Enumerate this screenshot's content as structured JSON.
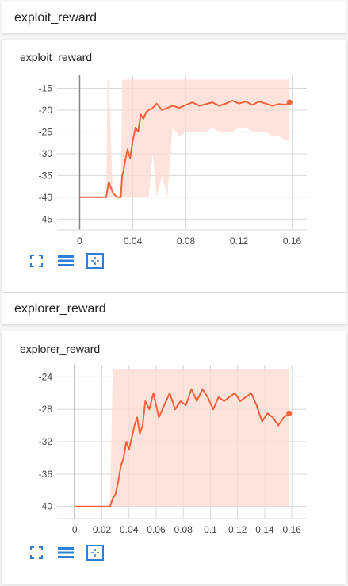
{
  "sections": [
    {
      "header": "exploit_reward",
      "card_title": "exploit_reward"
    },
    {
      "header": "explorer_reward",
      "card_title": "explorer_reward"
    }
  ],
  "colors": {
    "line": "#f4623a",
    "band": "#fcd9cf",
    "grid": "#d9d9d9",
    "axis": "#888888",
    "accent": "#2f7fd9"
  },
  "toolbar_icons": [
    "fit-domain-icon",
    "toggle-log-scale-icon",
    "toggle-selection-icon"
  ],
  "chart_data": [
    {
      "type": "line",
      "title": "exploit_reward",
      "xlabel": "",
      "ylabel": "",
      "xlim": [
        -0.017,
        0.171
      ],
      "ylim": [
        -47.5,
        -12
      ],
      "xticks": [
        0,
        0.04,
        0.08,
        0.12,
        0.16
      ],
      "xtick_labels": [
        "0",
        "0.04",
        "0.08",
        "0.12",
        "0.16"
      ],
      "yticks": [
        -15,
        -20,
        -25,
        -30,
        -35,
        -40,
        -45
      ],
      "ytick_labels": [
        "-15",
        "-20",
        "-25",
        "-30",
        "-35",
        "-40",
        "-45"
      ],
      "grid": true,
      "series": [
        {
          "x": [
            0,
            0.02,
            0.021,
            0.022,
            0.025,
            0.028,
            0.031,
            0.032,
            0.033,
            0.034,
            0.036,
            0.038,
            0.04,
            0.042,
            0.044,
            0.046,
            0.048,
            0.05,
            0.052,
            0.055,
            0.058,
            0.062,
            0.066,
            0.07,
            0.075,
            0.08,
            0.085,
            0.09,
            0.095,
            0.1,
            0.105,
            0.11,
            0.115,
            0.12,
            0.125,
            0.13,
            0.135,
            0.14,
            0.145,
            0.15,
            0.155,
            0.158
          ],
          "y": [
            -40,
            -40,
            -38,
            -36.5,
            -39,
            -40,
            -40,
            -35,
            -34,
            -32,
            -29,
            -31,
            -27,
            -24,
            -25,
            -21,
            -22,
            -20.5,
            -20,
            -19.5,
            -18.5,
            -20,
            -19.5,
            -19,
            -19.5,
            -18.8,
            -18.2,
            -19,
            -18.6,
            -18.2,
            -19,
            -18.5,
            -17.8,
            -18.5,
            -18,
            -18.8,
            -18,
            -18.5,
            -19,
            -18.6,
            -18.8,
            -18.2
          ],
          "band_low": [
            -40,
            -40,
            -40,
            -40,
            -40,
            -40,
            -40,
            -40,
            -40,
            -40,
            -40,
            -40,
            -40,
            -40,
            -40,
            -40,
            -40,
            -40,
            -40,
            -30,
            -40,
            -35,
            -40,
            -24,
            -26,
            -25,
            -25,
            -25,
            -25,
            -24,
            -25,
            -25,
            -25,
            -24,
            -24,
            -25,
            -25,
            -25,
            -26,
            -26,
            -27,
            -27
          ],
          "band_high": [
            -40,
            -40,
            -13,
            -13,
            -40,
            -40,
            -40,
            -13,
            -13,
            -13,
            -13,
            -13,
            -13,
            -13,
            -13,
            -13,
            -13,
            -13,
            -13,
            -13,
            -13,
            -13,
            -13,
            -13,
            -13,
            -13,
            -13,
            -13,
            -13,
            -13,
            -13,
            -13,
            -13,
            -13,
            -13,
            -13,
            -13,
            -13,
            -13,
            -13,
            -13,
            -13
          ]
        }
      ]
    },
    {
      "type": "line",
      "title": "explorer_reward",
      "xlabel": "",
      "ylabel": "",
      "xlim": [
        -0.013,
        0.171
      ],
      "ylim": [
        -41.5,
        -22.5
      ],
      "xticks": [
        0,
        0.02,
        0.04,
        0.06,
        0.08,
        0.1,
        0.12,
        0.14,
        0.16
      ],
      "xtick_labels": [
        "0",
        "0.02",
        "0.04",
        "0.06",
        "0.08",
        "0.1",
        "0.12",
        "0.14",
        "0.16"
      ],
      "yticks": [
        -24,
        -28,
        -32,
        -36,
        -40
      ],
      "ytick_labels": [
        "-24",
        "-28",
        "-32",
        "-36",
        "-40"
      ],
      "grid": true,
      "series": [
        {
          "x": [
            0,
            0.026,
            0.028,
            0.03,
            0.032,
            0.034,
            0.036,
            0.038,
            0.04,
            0.042,
            0.044,
            0.046,
            0.048,
            0.05,
            0.052,
            0.055,
            0.058,
            0.062,
            0.066,
            0.07,
            0.074,
            0.078,
            0.082,
            0.086,
            0.09,
            0.094,
            0.098,
            0.102,
            0.106,
            0.11,
            0.114,
            0.118,
            0.122,
            0.126,
            0.13,
            0.134,
            0.138,
            0.142,
            0.146,
            0.15,
            0.154,
            0.158
          ],
          "y": [
            -40,
            -40,
            -39,
            -38.5,
            -37,
            -35,
            -34,
            -32,
            -33,
            -31.5,
            -30,
            -29,
            -31,
            -30,
            -27,
            -28,
            -26,
            -29,
            -27.5,
            -26,
            -28,
            -27,
            -27.5,
            -25.5,
            -27,
            -25.5,
            -26.5,
            -28,
            -26.5,
            -27,
            -26.5,
            -26,
            -27,
            -26.5,
            -26,
            -27.5,
            -29.5,
            -28.5,
            -29,
            -30,
            -29,
            -28.5
          ],
          "band_low": [
            -40,
            -40,
            -40,
            -40,
            -40,
            -40,
            -40,
            -40,
            -40,
            -40,
            -40,
            -40,
            -40,
            -40,
            -40,
            -40,
            -40,
            -40,
            -40,
            -40,
            -40,
            -40,
            -40,
            -40,
            -40,
            -40,
            -40,
            -40,
            -40,
            -40,
            -40,
            -40,
            -40,
            -40,
            -40,
            -40,
            -40,
            -40,
            -40,
            -40,
            -40,
            -40
          ],
          "band_high": [
            -40,
            -40,
            -23,
            -23,
            -23,
            -23,
            -23,
            -23,
            -23,
            -23,
            -23,
            -23,
            -23,
            -23,
            -23,
            -23,
            -23,
            -23,
            -23,
            -23,
            -23,
            -23,
            -23,
            -23,
            -23,
            -23,
            -23,
            -23,
            -23,
            -23,
            -23,
            -23,
            -23,
            -23,
            -23,
            -23,
            -23,
            -23,
            -23,
            -23,
            -23,
            -23
          ]
        }
      ]
    }
  ]
}
